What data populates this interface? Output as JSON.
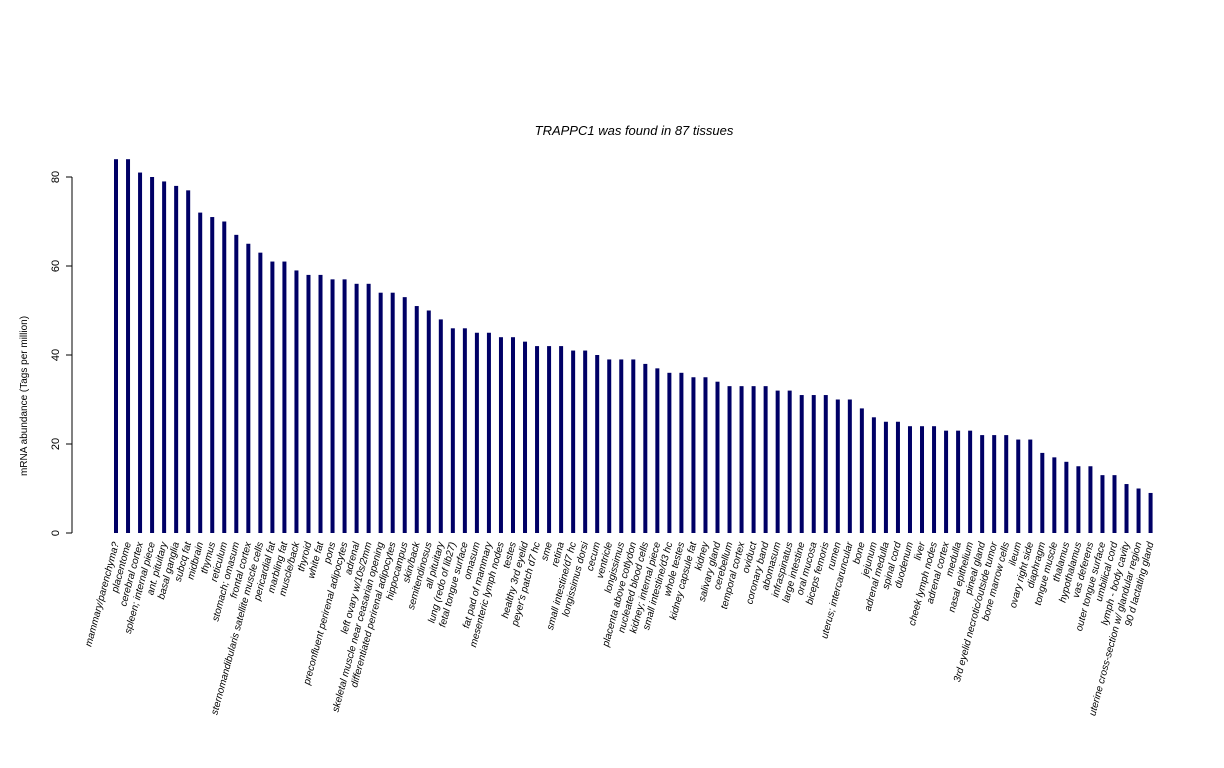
{
  "chart_data": {
    "type": "bar",
    "title": "TRAPPC1  was found in  87  tissues",
    "ylabel": "mRNA abundance (Tags per million)",
    "xlabel": "",
    "ylim": [
      0,
      84
    ],
    "yticks": [
      0,
      20,
      40,
      60,
      80
    ],
    "bar_color": "#000066",
    "grid": false,
    "categories": [
      "mammary/parenchyma?",
      "placentome",
      "cerebral cortex",
      "spleen; internal piece",
      "ant. pituitary",
      "basal ganglia",
      "subcq fat",
      "midbrain",
      "thymus",
      "reticulum",
      "stomach; omasum",
      "frontal cortex",
      "sternomandibularis satellite muscle cells",
      "pericardial fat",
      "marbling fat",
      "muscle/back",
      "thyroid",
      "white fat",
      "pons",
      "preconfluent perirenal adipocytes",
      "adrenal",
      "left ovary w/10s/2mm",
      "skeletal muscle near ceasarian opening",
      "differentiated perirenal adipocytes",
      "hippocampus",
      "skin/back",
      "semitendinosus",
      "all pituitary",
      "lung (redo of lib27)",
      "fetal tongue surface",
      "omasum",
      "fat pad of mammary",
      "mesenteric lymph nodes",
      "testes",
      "healthy 3rd eyelid",
      "peyer's patch d7 hc",
      "sme",
      "retina",
      "small intestine/d7 hc",
      "longissimus dorsi",
      "cecum",
      "ventricle",
      "longissimus",
      "placenta above cotlydon",
      "nucleated blood cells",
      "kidney; internal piece",
      "small intestine/d3 hc",
      "whole testes",
      "kidney capsule fat",
      "kidney",
      "salivary gland",
      "cerebellum",
      "temporal cortex",
      "oviduct",
      "coronary band",
      "abomasum",
      "infraspinatus",
      "large intestine",
      "oral mucosa",
      "biceps femoris",
      "rumen",
      "uterus; intercaruncular",
      "bone",
      "jejunum",
      "adrenal medulla",
      "spinal cord",
      "duodenum",
      "liver",
      "cheek lymph nodes",
      "adrenal cortex",
      "medulla",
      "nasal epithelium",
      "pineal gland",
      "3rd eyelid necrotic/outside tumor",
      "bone marrow cells",
      "ileum",
      "ovary right side",
      "diaphragm",
      "tongue muscle",
      "thalamus",
      "hypothalamus",
      "vas deferens",
      "outer tongue surface",
      "umbilical cord",
      "lymph - body cavity",
      "uterine cross-section w/ glandular region",
      "90 d lactating gland"
    ],
    "values": [
      84,
      84,
      81,
      80,
      79,
      78,
      77,
      72,
      71,
      70,
      67,
      65,
      63,
      61,
      61,
      59,
      58,
      58,
      57,
      57,
      56,
      56,
      54,
      54,
      53,
      51,
      50,
      48,
      46,
      46,
      45,
      45,
      44,
      44,
      43,
      42,
      42,
      42,
      41,
      41,
      40,
      39,
      39,
      39,
      38,
      37,
      36,
      36,
      35,
      35,
      34,
      33,
      33,
      33,
      33,
      32,
      32,
      31,
      31,
      31,
      30,
      30,
      28,
      26,
      25,
      25,
      24,
      24,
      24,
      23,
      23,
      23,
      22,
      22,
      22,
      21,
      21,
      18,
      17,
      16,
      15,
      15,
      13,
      13,
      11,
      10,
      9
    ]
  }
}
